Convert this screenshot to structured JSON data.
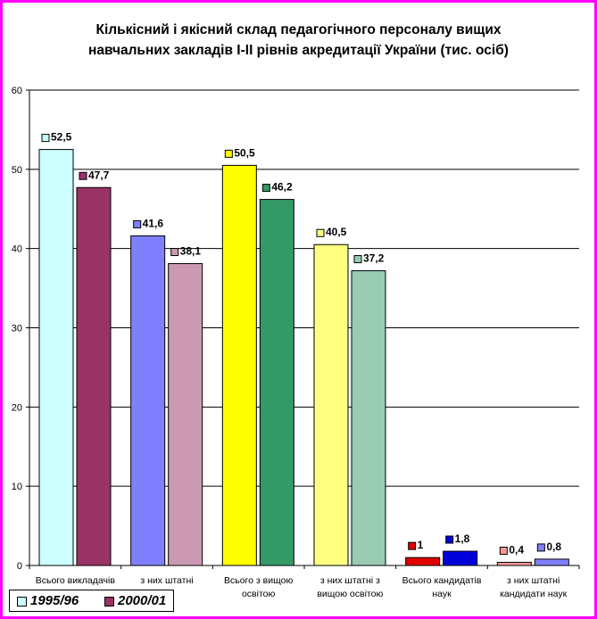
{
  "chart_data": {
    "type": "bar",
    "title": "Кількісний і якісний склад педагогічного персоналу вищих навчальних закладів І-ІІ рівнів акредитації України  (тис. осіб)",
    "title_lines": [
      "Кількісний і якісний склад педагогічного персоналу вищих",
      "навчальних закладів І-ІІ рівнів акредитації України  (тис. осіб)"
    ],
    "categories": [
      [
        "Всього викладачів"
      ],
      [
        "з них штатні"
      ],
      [
        "Всього з вищою",
        "освітою"
      ],
      [
        "з них штатні з",
        "вищою освітою"
      ],
      [
        "Всього кандидатів",
        "наук"
      ],
      [
        "з них штатні",
        "кандидати наук"
      ]
    ],
    "series": [
      {
        "name": "1995/96",
        "values": [
          52.5,
          41.6,
          50.5,
          40.5,
          1,
          0.4
        ],
        "value_labels": [
          "52,5",
          "41,6",
          "50,5",
          "40,5",
          "1",
          "0,4"
        ],
        "colors": [
          "#ccffff",
          "#8080ff",
          "#ffff00",
          "#ffff80",
          "#e00000",
          "#ff9999"
        ]
      },
      {
        "name": "2000/01",
        "values": [
          47.7,
          38.1,
          46.2,
          37.2,
          1.8,
          0.8
        ],
        "value_labels": [
          "47,7",
          "38,1",
          "46,2",
          "37,2",
          "1,8",
          "0,8"
        ],
        "colors": [
          "#993366",
          "#cc99b3",
          "#339966",
          "#99ccb3",
          "#0000dd",
          "#8080ff"
        ]
      }
    ],
    "legend_colors": [
      "#ccffff",
      "#993366"
    ],
    "ylim": [
      0,
      60
    ],
    "yticks": [
      0,
      10,
      20,
      30,
      40,
      50,
      60
    ],
    "grid": true,
    "legend_position": "bottom-left"
  }
}
